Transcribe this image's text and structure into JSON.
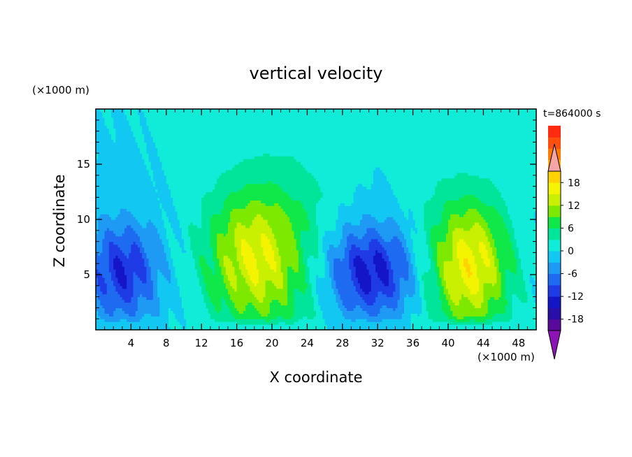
{
  "chart_data": {
    "type": "heatmap",
    "title": "vertical velocity",
    "xlabel": "X coordinate",
    "ylabel": "Z coordinate",
    "x_unit": "(×1000 m)",
    "y_unit": "(×1000 m)",
    "time_label": "t=864000 s",
    "xlim": [
      0,
      50
    ],
    "ylim": [
      0,
      20
    ],
    "x_ticks": [
      4,
      8,
      12,
      16,
      20,
      24,
      28,
      32,
      36,
      40,
      44,
      48
    ],
    "x_tick_labels": [
      "4",
      "8",
      "12",
      "16",
      "20",
      "24",
      "28",
      "32",
      "36",
      "40",
      "44",
      "48"
    ],
    "y_ticks": [
      5,
      10,
      15
    ],
    "y_tick_labels": [
      "5",
      "10",
      "15"
    ],
    "colorbar": {
      "min": -21,
      "max": 21,
      "step": 3,
      "tick_values": [
        18,
        12,
        6,
        0,
        -6,
        -12,
        -18
      ],
      "tick_labels": [
        "18",
        "12",
        "6",
        "0",
        "-6",
        "-12",
        "-18"
      ],
      "colors": [
        "#5a0a9a",
        "#2a0ea8",
        "#1515c8",
        "#1e3be6",
        "#1e6af0",
        "#1e9af5",
        "#12c8f2",
        "#10ecd8",
        "#00e59a",
        "#10e84a",
        "#7de800",
        "#c8f000",
        "#f4f400",
        "#ffd200",
        "#ffaa00",
        "#ff7a00",
        "#ff4f10",
        "#ff2a10"
      ],
      "under_color": "#8c14b4",
      "over_color": "#f4a6a6"
    },
    "features": [
      {
        "kind": "updraft",
        "x": 18,
        "z": 6.5,
        "peak": 15,
        "sx": 4.0,
        "sz": 5.5
      },
      {
        "kind": "updraft",
        "x": 42.5,
        "z": 5.5,
        "peak": 17,
        "sx": 3.2,
        "sz": 5.0
      },
      {
        "kind": "downdraft",
        "x": 31,
        "z": 5.0,
        "peak": -14,
        "sx": 3.8,
        "sz": 3.2
      },
      {
        "kind": "downdraft",
        "x": 3,
        "z": 5.0,
        "peak": -12,
        "sx": 3.0,
        "sz": 3.5
      }
    ]
  }
}
